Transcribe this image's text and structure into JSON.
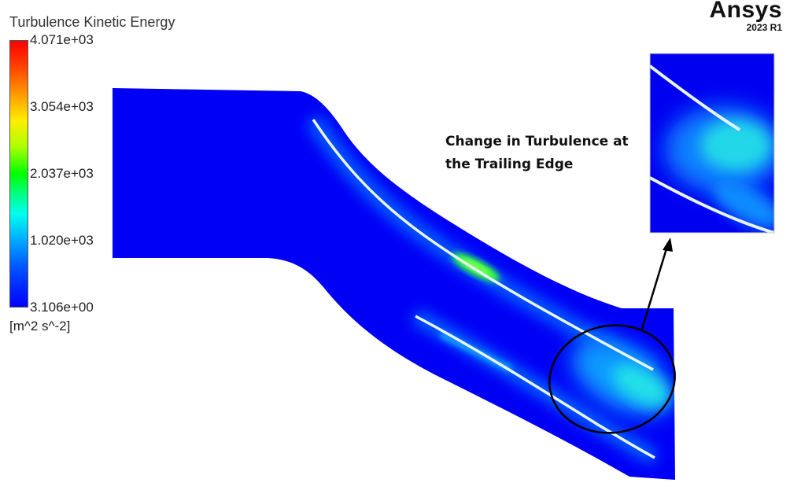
{
  "legend": {
    "title": "Turbulence Kinetic Energy",
    "ticks": [
      "4.071e+03",
      "3.054e+03",
      "2.037e+03",
      "1.020e+03",
      "3.106e+00"
    ],
    "units": "[m^2 s^-2]"
  },
  "brand": {
    "name": "Ansys",
    "version": "2023 R1"
  },
  "annotation": {
    "line1": "Change in Turbulence at",
    "line2": "the Trailing Edge"
  },
  "colors": {
    "low": "#0000ff",
    "mid": "#00ff00",
    "high": "#ff0000",
    "annotation_line": "#000000"
  }
}
